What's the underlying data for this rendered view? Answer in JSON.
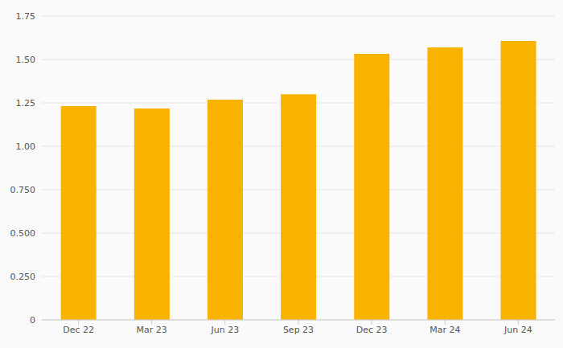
{
  "chart_data": {
    "type": "bar",
    "categories": [
      "Dec 22",
      "Mar 23",
      "Jun 23",
      "Sep 23",
      "Dec 23",
      "Mar 24",
      "Jun 24"
    ],
    "values": [
      1.231,
      1.218,
      1.268,
      1.3,
      1.532,
      1.569,
      1.606
    ],
    "color": "#f9b200",
    "ylim": [
      0,
      1.75
    ],
    "yticks": [
      0,
      {
        "value": 0.25,
        "label": "0.250"
      },
      {
        "value": 0.5,
        "label": "0.500"
      },
      {
        "value": 0.75,
        "label": "0.750"
      },
      {
        "value": 1,
        "label": "1.00"
      },
      1.25,
      {
        "value": 1.5,
        "label": "1.50"
      },
      1.75
    ],
    "grid": true
  }
}
